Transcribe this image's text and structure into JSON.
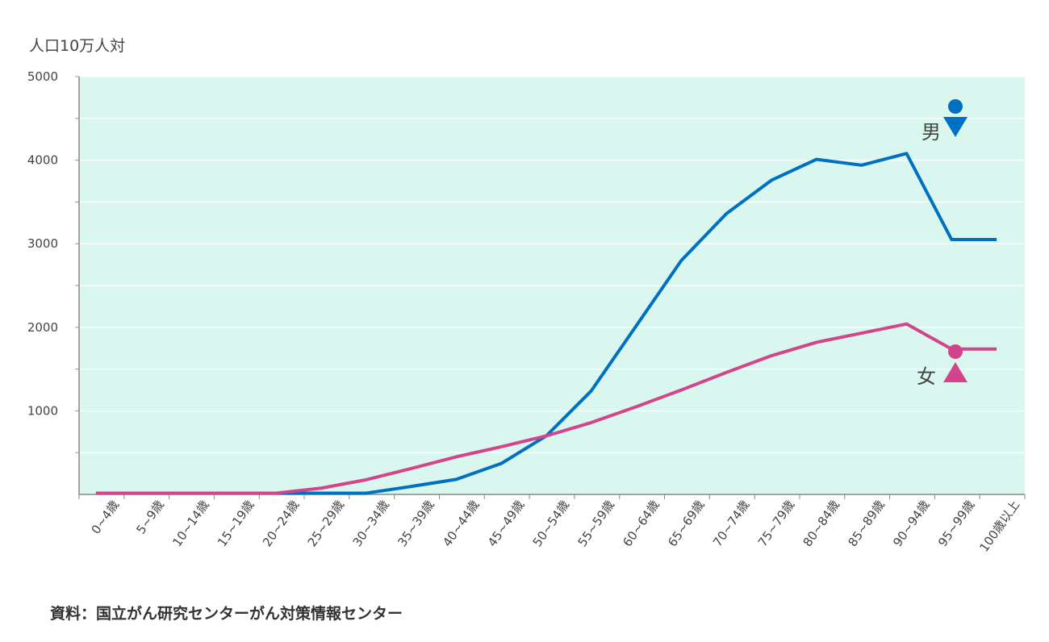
{
  "chart_data": {
    "type": "line",
    "ylabel": "人口10万人対",
    "ylim": [
      0,
      5000
    ],
    "yticks": [
      "5000",
      "4000",
      "3000",
      "2000",
      "1000"
    ],
    "yticks_values": [
      5000,
      4000,
      3000,
      2000,
      1000
    ],
    "grid": true,
    "categories": [
      "0~4歳",
      "5~9歳",
      "10~14歳",
      "15~19歳",
      "20~24歳",
      "25~29歳",
      "30~34歳",
      "35~39歳",
      "40~44歳",
      "45~49歳",
      "50~54歳",
      "55~59歳",
      "60~64歳",
      "65~69歳",
      "70~74歳",
      "75~79歳",
      "80~84歳",
      "85~89歳",
      "90~94歳",
      "95~99歳",
      "100歳以上"
    ],
    "series": [
      {
        "name": "男",
        "color": "#0070c0",
        "values": [
          15,
          15,
          15,
          15,
          15,
          15,
          15,
          95,
          180,
          370,
          700,
          1240,
          2020,
          2800,
          3360,
          3760,
          4010,
          3940,
          4080,
          3050,
          3050
        ]
      },
      {
        "name": "女",
        "color": "#d4448a",
        "values": [
          15,
          15,
          15,
          15,
          15,
          75,
          175,
          310,
          450,
          570,
          700,
          860,
          1050,
          1250,
          1460,
          1660,
          1820,
          1930,
          2040,
          1740,
          1740
        ]
      }
    ],
    "legend_placement": "right"
  },
  "source": "資料：国立がん研究センターがん対策情報センター",
  "colors": {
    "plot_bg": "#d9f7ef",
    "male": "#0070c0",
    "female": "#d4448a"
  }
}
